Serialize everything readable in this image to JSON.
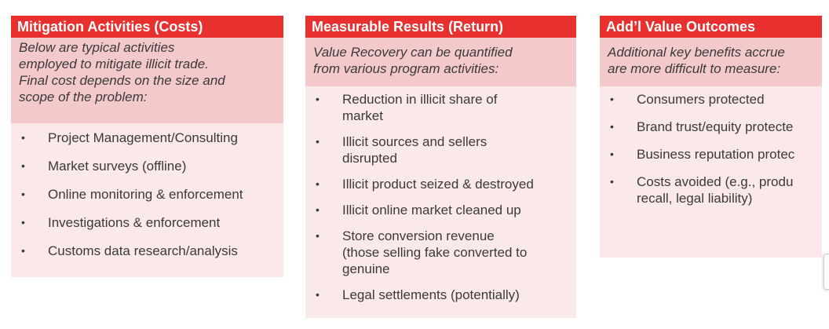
{
  "colors": {
    "header_red": "#e8312e",
    "intro_pink": "#f4c9cb",
    "list_pink": "#fbe8e9",
    "text": "#3a3a3a"
  },
  "bullet_glyph": "•",
  "columns": [
    {
      "title": "Mitigation Activities (Costs)",
      "intro": "Below are typical activities\nemployed to mitigate illicit trade.\nFinal cost depends on the size and\nscope of the problem:",
      "items": [
        "Project Management/Consulting",
        "Market surveys (offline)",
        "Online monitoring & enforcement",
        "Investigations & enforcement",
        "Customs data research/analysis"
      ]
    },
    {
      "title": "Measurable Results (Return)",
      "intro": "Value Recovery can be quantified\nfrom various program activities:",
      "items": [
        "Reduction in illicit share of\nmarket",
        "Illicit sources and sellers\ndisrupted",
        "Illicit product seized & destroyed",
        "Illicit online market cleaned up",
        "Store conversion revenue\n(those selling fake converted to\ngenuine",
        "Legal settlements (potentially)"
      ]
    },
    {
      "title": "Add’l Value Outcomes",
      "intro": "Additional key benefits accrue\nare more difficult to measure:",
      "items": [
        "Consumers protected",
        "Brand trust/equity protecte",
        "Business reputation protec",
        "Costs avoided (e.g., produ\nrecall, legal liability)"
      ]
    }
  ]
}
